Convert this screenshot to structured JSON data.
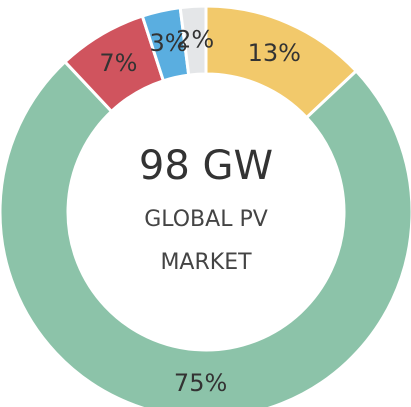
{
  "chart_data": {
    "type": "donut",
    "values": [
      13,
      75,
      7,
      3,
      2
    ],
    "value_labels": [
      "13%",
      "75%",
      "7%",
      "3%",
      "2%"
    ],
    "colors": [
      "#f2c96b",
      "#8cc3a9",
      "#d0545e",
      "#5aaee0",
      "#e4e6e8"
    ],
    "center_text": [
      "98 GW",
      "GLOBAL PV",
      "MARKET"
    ]
  }
}
